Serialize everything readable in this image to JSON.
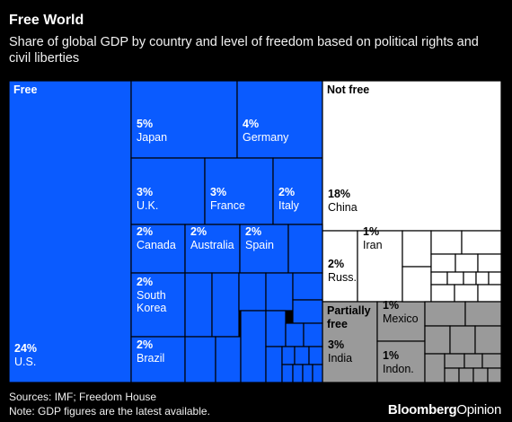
{
  "title": "Free World",
  "subtitle": "Share of global GDP by country and level of freedom based on political rights and civil liberties",
  "footer": {
    "sources": "Sources: IMF; Freedom House",
    "note": "Note: GDP figures are the latest available."
  },
  "brand": {
    "part1": "Bloomberg",
    "part2": "Opinion"
  },
  "colors": {
    "free": "#0a5bff",
    "not_free": "#ffffff",
    "partially_free": "#9a9a9a",
    "background": "#000000"
  },
  "chart_data": {
    "type": "treemap",
    "unit": "% of global GDP",
    "groups": [
      {
        "name": "Free",
        "countries": [
          {
            "label": "U.S.",
            "value": 24
          },
          {
            "label": "Japan",
            "value": 5
          },
          {
            "label": "Germany",
            "value": 4
          },
          {
            "label": "U.K.",
            "value": 3
          },
          {
            "label": "France",
            "value": 3
          },
          {
            "label": "Italy",
            "value": 2
          },
          {
            "label": "Canada",
            "value": 2
          },
          {
            "label": "Australia",
            "value": 2
          },
          {
            "label": "Spain",
            "value": 2
          },
          {
            "label": "South Korea",
            "value": 2
          },
          {
            "label": "Brazil",
            "value": 2
          }
        ]
      },
      {
        "name": "Not free",
        "countries": [
          {
            "label": "China",
            "value": 18
          },
          {
            "label": "Russ.",
            "value": 2
          },
          {
            "label": "Iran",
            "value": 1
          }
        ]
      },
      {
        "name": "Partially free",
        "countries": [
          {
            "label": "India",
            "value": 3
          },
          {
            "label": "Mexico",
            "value": 1
          },
          {
            "label": "Indon.",
            "value": 1
          }
        ]
      }
    ]
  }
}
